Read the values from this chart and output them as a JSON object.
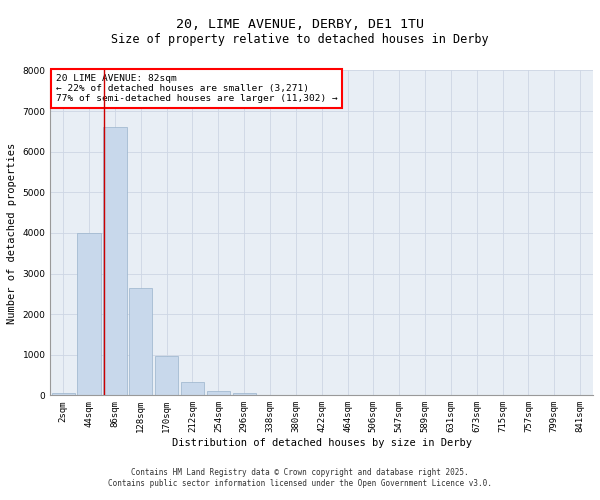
{
  "title_line1": "20, LIME AVENUE, DERBY, DE1 1TU",
  "title_line2": "Size of property relative to detached houses in Derby",
  "xlabel": "Distribution of detached houses by size in Derby",
  "ylabel": "Number of detached properties",
  "categories": [
    "2sqm",
    "44sqm",
    "86sqm",
    "128sqm",
    "170sqm",
    "212sqm",
    "254sqm",
    "296sqm",
    "338sqm",
    "380sqm",
    "422sqm",
    "464sqm",
    "506sqm",
    "547sqm",
    "589sqm",
    "631sqm",
    "673sqm",
    "715sqm",
    "757sqm",
    "799sqm",
    "841sqm"
  ],
  "values": [
    50,
    4000,
    6600,
    2650,
    970,
    330,
    120,
    70,
    0,
    0,
    0,
    0,
    0,
    0,
    0,
    0,
    0,
    0,
    0,
    0,
    0
  ],
  "bar_color": "#c8d8eb",
  "bar_edge_color": "#9ab4cc",
  "vline_color": "#cc0000",
  "ylim": [
    0,
    8000
  ],
  "yticks": [
    0,
    1000,
    2000,
    3000,
    4000,
    5000,
    6000,
    7000,
    8000
  ],
  "annotation_text": "20 LIME AVENUE: 82sqm\n← 22% of detached houses are smaller (3,271)\n77% of semi-detached houses are larger (11,302) →",
  "grid_color": "#cdd6e4",
  "background_color": "#e8eef5",
  "footer": "Contains HM Land Registry data © Crown copyright and database right 2025.\nContains public sector information licensed under the Open Government Licence v3.0.",
  "title_fontsize": 9.5,
  "subtitle_fontsize": 8.5,
  "tick_fontsize": 6.5,
  "ylabel_fontsize": 7.5,
  "xlabel_fontsize": 7.5,
  "annot_fontsize": 6.8,
  "footer_fontsize": 5.5
}
